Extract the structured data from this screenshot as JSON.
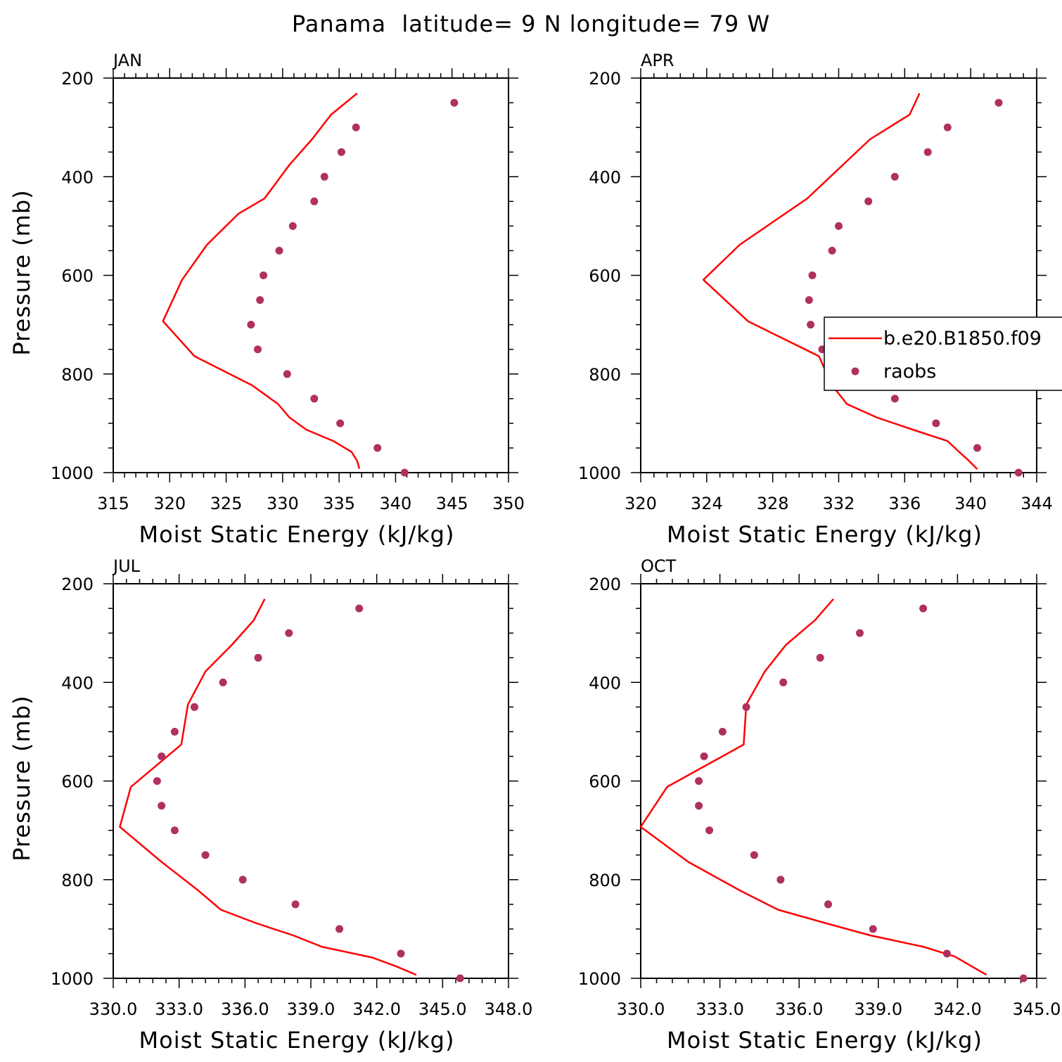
{
  "figure": {
    "title": "Panama  latitude= 9 N longitude= 79 W"
  },
  "colors": {
    "model_line": "#ff0000",
    "obs_marker": "#b03060",
    "axes": "#000000"
  },
  "legend": {
    "entries": [
      {
        "label": "b.e20.B1850.f09",
        "style": "line"
      },
      {
        "label": "raobs",
        "style": "marker"
      }
    ],
    "placement": "APR panel, right"
  },
  "chart_data": [
    {
      "type": "line",
      "panel": "JAN",
      "xlabel": "Moist Static Energy (kJ/kg)",
      "ylabel": "Pressure (mb)",
      "xlim": [
        315,
        350
      ],
      "ylim": [
        1000,
        200
      ],
      "xticks": [
        315,
        320,
        325,
        330,
        335,
        340,
        345,
        350
      ],
      "xtick_labels": [
        "315",
        "320",
        "325",
        "330",
        "335",
        "340",
        "345",
        "350"
      ],
      "yticks": [
        200,
        400,
        600,
        800,
        1000
      ],
      "ytick_labels": [
        "200",
        "400",
        "600",
        "800",
        "1000"
      ],
      "series": [
        {
          "name": "b.e20.B1850.f09",
          "kind": "line",
          "x": [
            336.8,
            336.6,
            336.1,
            334.5,
            332.1,
            330.6,
            329.6,
            327.3,
            322.2,
            319.4,
            321.1,
            323.3,
            326.1,
            328.4,
            330.6,
            332.6,
            334.3,
            336.6
          ],
          "y": [
            992,
            976,
            958,
            936,
            913,
            888,
            861,
            823,
            764,
            693,
            609,
            538,
            475,
            444,
            376,
            324,
            274,
            231
          ]
        },
        {
          "name": "raobs",
          "kind": "marker",
          "x": [
            340.8,
            338.4,
            335.1,
            332.8,
            330.4,
            327.8,
            327.2,
            328.0,
            328.3,
            329.7,
            330.9,
            332.8,
            333.7,
            335.2,
            336.5,
            345.2
          ],
          "y": [
            1000,
            950,
            900,
            850,
            800,
            750,
            700,
            650,
            600,
            550,
            500,
            450,
            400,
            350,
            300,
            250
          ]
        }
      ]
    },
    {
      "type": "line",
      "panel": "APR",
      "xlabel": "Moist Static Energy (kJ/kg)",
      "ylabel": "",
      "xlim": [
        320,
        344
      ],
      "ylim": [
        1000,
        200
      ],
      "xticks": [
        320,
        324,
        328,
        332,
        336,
        340,
        344
      ],
      "xtick_labels": [
        "320",
        "324",
        "328",
        "332",
        "336",
        "340",
        "344"
      ],
      "yticks": [
        200,
        400,
        600,
        800,
        1000
      ],
      "ytick_labels": [
        "200",
        "400",
        "600",
        "800",
        "1000"
      ],
      "series": [
        {
          "name": "b.e20.B1850.f09",
          "kind": "line",
          "x": [
            340.4,
            339.9,
            339.3,
            338.6,
            336.5,
            334.3,
            332.5,
            331.6,
            330.8,
            326.5,
            323.8,
            326.0,
            330.1,
            333.9,
            336.3,
            336.9
          ],
          "y": [
            993,
            976,
            958,
            936,
            913,
            888,
            861,
            823,
            764,
            693,
            609,
            538,
            444,
            324,
            274,
            231
          ]
        },
        {
          "name": "raobs",
          "kind": "marker",
          "x": [
            342.9,
            340.4,
            337.9,
            335.4,
            334.0,
            331.0,
            330.3,
            330.2,
            330.4,
            331.6,
            332.0,
            333.8,
            335.4,
            337.4,
            338.6,
            341.7
          ],
          "y": [
            1000,
            950,
            900,
            850,
            800,
            750,
            700,
            650,
            600,
            550,
            500,
            450,
            400,
            350,
            300,
            250
          ]
        }
      ]
    },
    {
      "type": "line",
      "panel": "JUL",
      "xlabel": "Moist Static Energy (kJ/kg)",
      "ylabel": "Pressure (mb)",
      "xlim": [
        330,
        348
      ],
      "ylim": [
        1000,
        200
      ],
      "xticks": [
        330,
        333,
        336,
        339,
        342,
        345,
        348
      ],
      "xtick_labels": [
        "330.0",
        "333.0",
        "336.0",
        "339.0",
        "342.0",
        "345.0",
        "348.0"
      ],
      "yticks": [
        200,
        400,
        600,
        800,
        1000
      ],
      "ytick_labels": [
        "200",
        "400",
        "600",
        "800",
        "1000"
      ],
      "series": [
        {
          "name": "b.e20.B1850.f09",
          "kind": "line",
          "x": [
            343.8,
            342.9,
            341.8,
            339.5,
            338.2,
            336.5,
            334.9,
            333.9,
            332.2,
            330.3,
            330.8,
            333.1,
            333.4,
            334.2,
            335.4,
            336.4,
            336.9
          ],
          "y": [
            993,
            976,
            958,
            936,
            913,
            888,
            861,
            823,
            764,
            693,
            612,
            526,
            445,
            378,
            324,
            274,
            231
          ]
        },
        {
          "name": "raobs",
          "kind": "marker",
          "x": [
            345.8,
            343.1,
            340.3,
            338.3,
            335.9,
            334.2,
            332.8,
            332.2,
            332.0,
            332.2,
            332.8,
            333.7,
            335.0,
            336.6,
            338.0,
            341.2
          ],
          "y": [
            1000,
            950,
            900,
            850,
            800,
            750,
            700,
            650,
            600,
            550,
            500,
            450,
            400,
            350,
            300,
            250
          ]
        }
      ]
    },
    {
      "type": "line",
      "panel": "OCT",
      "xlabel": "Moist Static Energy (kJ/kg)",
      "ylabel": "",
      "xlim": [
        330,
        345
      ],
      "ylim": [
        1000,
        200
      ],
      "xticks": [
        330,
        333,
        336,
        339,
        342,
        345
      ],
      "xtick_labels": [
        "330.0",
        "333.0",
        "336.0",
        "339.0",
        "342.0",
        "345.0"
      ],
      "yticks": [
        200,
        400,
        600,
        800,
        1000
      ],
      "ytick_labels": [
        "200",
        "400",
        "600",
        "800",
        "1000"
      ],
      "series": [
        {
          "name": "b.e20.B1850.f09",
          "kind": "line",
          "x": [
            343.1,
            341.9,
            340.7,
            338.7,
            337.0,
            335.2,
            333.8,
            331.8,
            330.0,
            331.0,
            333.9,
            334.0,
            334.7,
            335.5,
            336.6,
            337.3
          ],
          "y": [
            993,
            956,
            936,
            913,
            888,
            861,
            823,
            764,
            693,
            612,
            526,
            445,
            378,
            324,
            274,
            231
          ]
        },
        {
          "name": "raobs",
          "kind": "marker",
          "x": [
            344.5,
            341.6,
            338.8,
            337.1,
            335.3,
            334.3,
            332.6,
            332.2,
            332.2,
            332.4,
            333.1,
            334.0,
            335.4,
            336.8,
            338.3,
            340.7
          ],
          "y": [
            1000,
            950,
            900,
            850,
            800,
            750,
            700,
            650,
            600,
            550,
            500,
            450,
            400,
            350,
            300,
            250
          ]
        }
      ]
    }
  ]
}
